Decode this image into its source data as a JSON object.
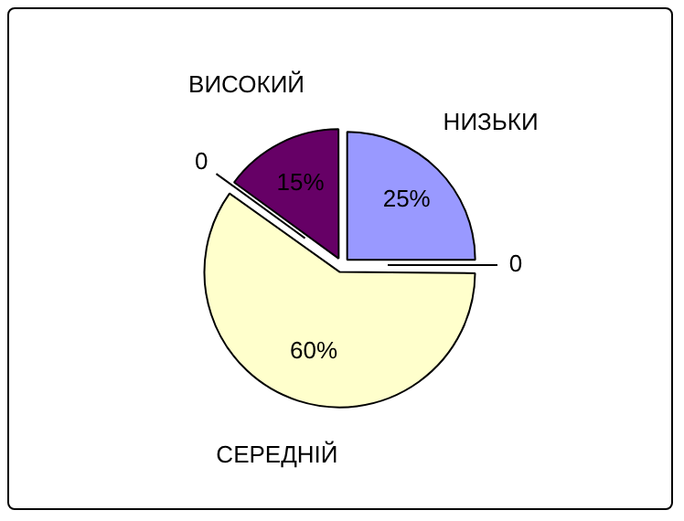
{
  "chart_data": {
    "type": "pie",
    "categories": [
      "НИЗЬКИ",
      null,
      "СЕРЕДНІЙ",
      null,
      "ВИСОКИЙ"
    ],
    "values": [
      25,
      0,
      60,
      0,
      15
    ],
    "colors": [
      "#9999ff",
      "#ffffff",
      "#ffffcc",
      "#ffffff",
      "#660066"
    ],
    "value_labels": [
      "25%",
      "0",
      "60%",
      "0",
      "15%"
    ],
    "legend": false
  }
}
